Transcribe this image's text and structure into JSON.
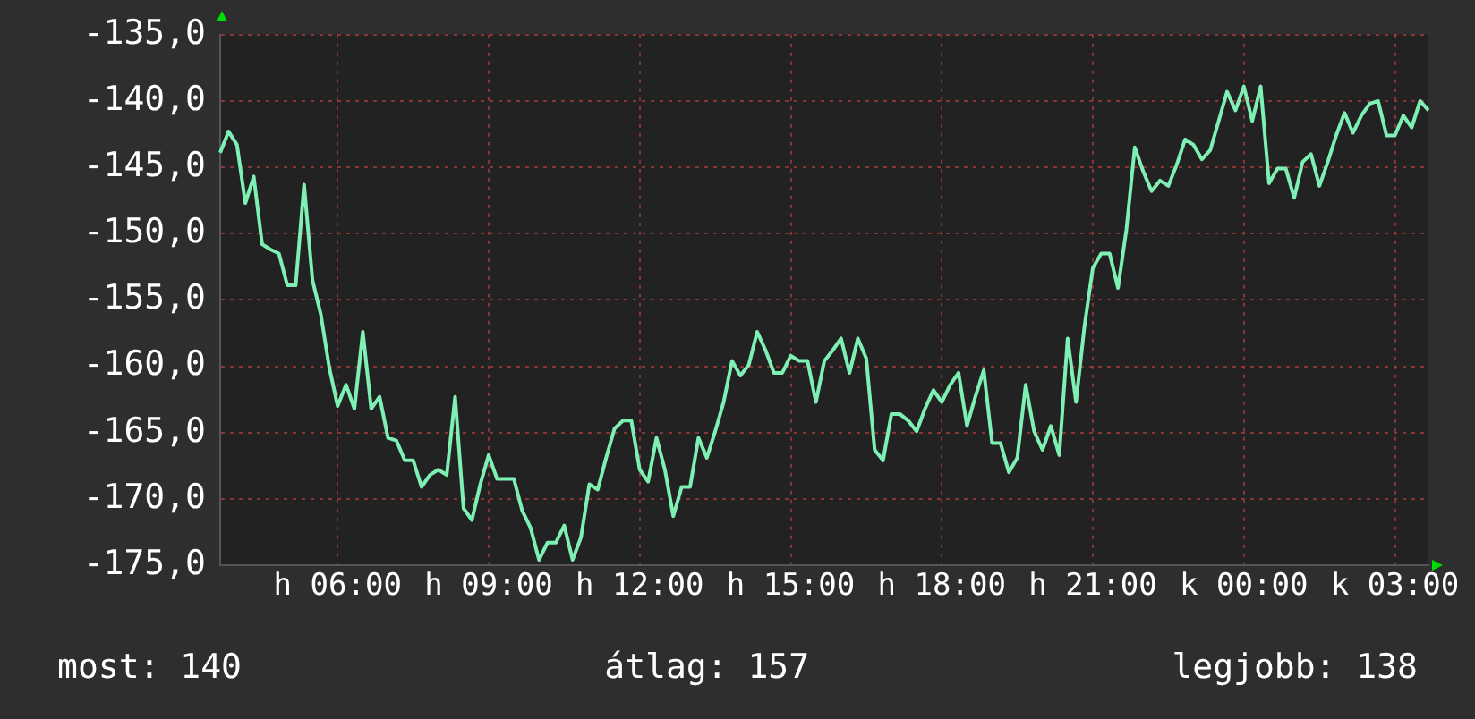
{
  "chart_data": {
    "type": "line",
    "categories": [
      null,
      null,
      null,
      null,
      null,
      null,
      null,
      null,
      null,
      null,
      null,
      null,
      null,
      null,
      "h 06:00",
      null,
      null,
      null,
      null,
      null,
      null,
      null,
      null,
      null,
      null,
      null,
      null,
      null,
      null,
      null,
      null,
      null,
      "h 09:00",
      null,
      null,
      null,
      null,
      null,
      null,
      null,
      null,
      null,
      null,
      null,
      null,
      null,
      null,
      null,
      null,
      null,
      "h 12:00",
      null,
      null,
      null,
      null,
      null,
      null,
      null,
      null,
      null,
      null,
      null,
      null,
      null,
      null,
      null,
      null,
      null,
      "h 15:00",
      null,
      null,
      null,
      null,
      null,
      null,
      null,
      null,
      null,
      null,
      null,
      null,
      null,
      null,
      null,
      null,
      null,
      "h 18:00",
      null,
      null,
      null,
      null,
      null,
      null,
      null,
      null,
      null,
      null,
      null,
      null,
      null,
      null,
      null,
      null,
      null,
      "h 21:00",
      null,
      null,
      null,
      null,
      null,
      null,
      null,
      null,
      null,
      null,
      null,
      null,
      null,
      null,
      null,
      null,
      null,
      "k 00:00",
      null,
      null,
      null,
      null,
      null,
      null,
      null,
      null,
      null,
      null,
      null,
      null,
      null,
      null,
      null,
      null,
      null,
      "k 03:00",
      null,
      null,
      null,
      null
    ],
    "series": [
      {
        "color": "#7ef0b4",
        "values": [
          -143.9,
          -142.3,
          -143.3,
          -147.7,
          -145.7,
          -150.8,
          -151.2,
          -151.5,
          -153.9,
          -153.9,
          -146.3,
          -153.5,
          -156.1,
          -160.1,
          -163.0,
          -161.4,
          -163.2,
          -157.4,
          -163.2,
          -162.3,
          -165.4,
          -165.6,
          -167.1,
          -167.1,
          -169.1,
          -168.2,
          -167.8,
          -168.2,
          -162.3,
          -170.7,
          -171.6,
          -168.9,
          -166.7,
          -168.5,
          -168.5,
          -168.5,
          -170.9,
          -172.2,
          -174.6,
          -173.3,
          -173.3,
          -172.0,
          -174.6,
          -172.9,
          -168.9,
          -169.3,
          -166.9,
          -164.7,
          -164.1,
          -164.1,
          -167.8,
          -168.7,
          -165.4,
          -167.8,
          -171.3,
          -169.1,
          -169.1,
          -165.4,
          -166.9,
          -164.9,
          -162.7,
          -159.6,
          -160.7,
          -159.9,
          -157.4,
          -158.8,
          -160.5,
          -160.5,
          -159.2,
          -159.6,
          -159.6,
          -162.7,
          -159.6,
          -158.8,
          -157.9,
          -160.5,
          -157.9,
          -159.4,
          -166.3,
          -167.1,
          -163.6,
          -163.6,
          -164.1,
          -164.9,
          -163.2,
          -161.8,
          -162.7,
          -161.4,
          -160.5,
          -164.5,
          -162.3,
          -160.3,
          -165.8,
          -165.8,
          -168.0,
          -166.9,
          -161.4,
          -164.9,
          -166.3,
          -164.5,
          -166.7,
          -157.9,
          -162.7,
          -157.0,
          -152.6,
          -151.5,
          -151.5,
          -154.1,
          -149.7,
          -143.5,
          -145.3,
          -146.8,
          -146.0,
          -146.4,
          -144.8,
          -142.9,
          -143.3,
          -144.4,
          -143.7,
          -141.5,
          -139.3,
          -140.7,
          -138.9,
          -141.5,
          -138.9,
          -146.2,
          -145.1,
          -145.1,
          -147.3,
          -144.6,
          -144.0,
          -146.4,
          -144.6,
          -142.6,
          -140.9,
          -142.4,
          -141.1,
          -140.2,
          -140.0,
          -142.6,
          -142.6,
          -141.1,
          -142.0,
          -140.0,
          -140.7
        ]
      }
    ],
    "ylim": [
      -175,
      -135
    ],
    "yticks": [
      {
        "value": -175,
        "label": "-175,0"
      },
      {
        "value": -170,
        "label": "-170,0"
      },
      {
        "value": -165,
        "label": "-165,0"
      },
      {
        "value": -160,
        "label": "-160,0"
      },
      {
        "value": -155,
        "label": "-155,0"
      },
      {
        "value": -150,
        "label": "-150,0"
      },
      {
        "value": -145,
        "label": "-145,0"
      },
      {
        "value": -140,
        "label": "-140,0"
      },
      {
        "value": -135,
        "label": "-135,0"
      }
    ],
    "grid": true,
    "marker": "none",
    "line_style": "solid",
    "annotations": [
      "most: 140",
      "átlag: 157",
      "legjobb: 138"
    ]
  }
}
